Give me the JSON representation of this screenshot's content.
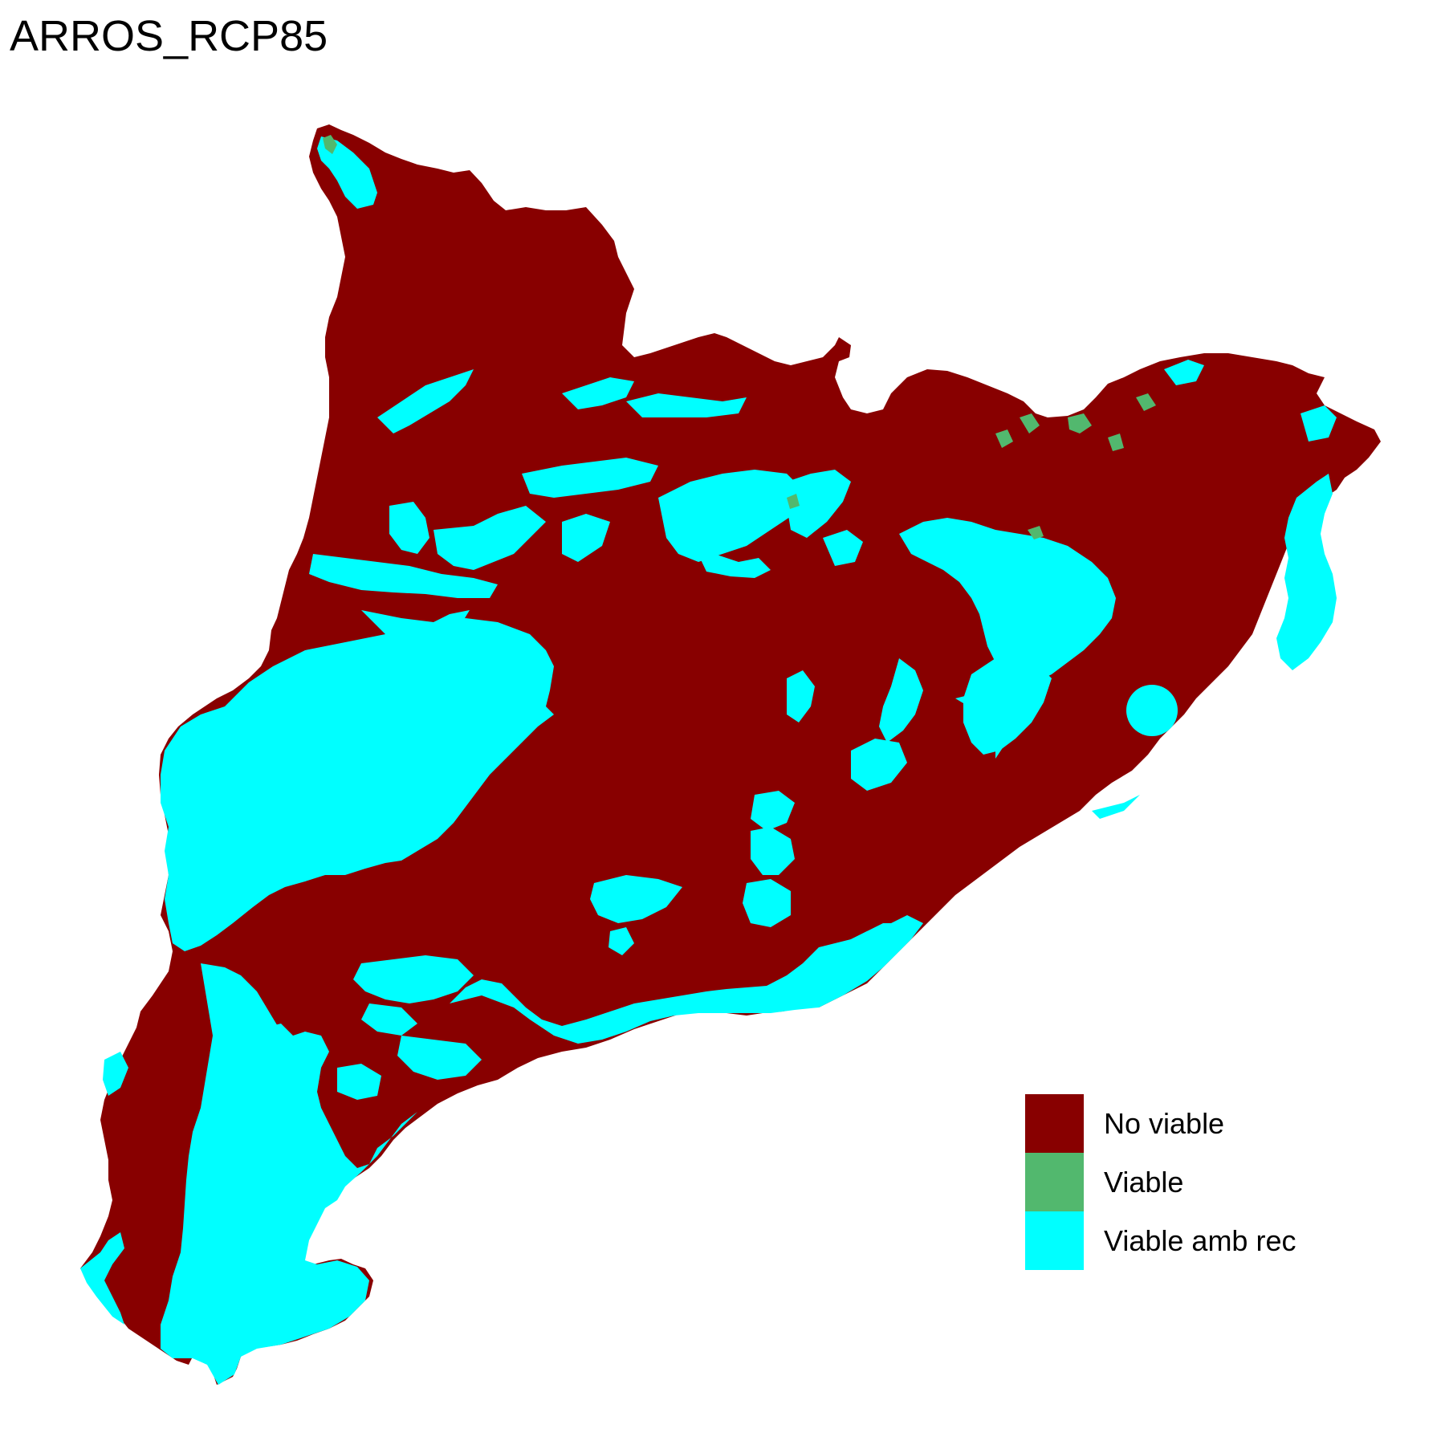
{
  "title": "ARROS_RCP85",
  "legend": [
    {
      "label": "No viable",
      "color": "#880000"
    },
    {
      "label": "Viable",
      "color": "#52b86e"
    },
    {
      "label": "Viable amb rec",
      "color": "#00ffff"
    }
  ]
}
